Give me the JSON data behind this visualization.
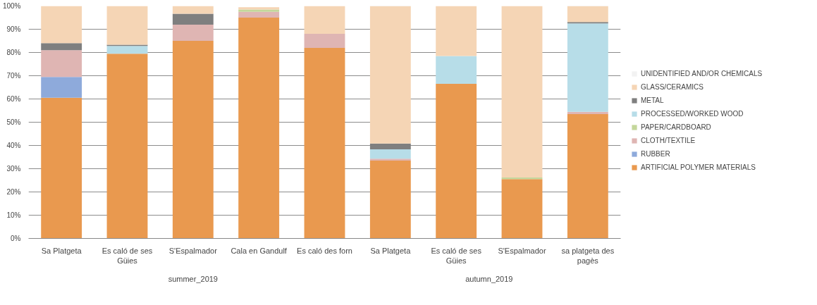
{
  "chart_data": {
    "type": "bar",
    "stacked": true,
    "categories": [
      "Sa Platgeta",
      "Es caló de ses Güies",
      "S'Espalmador",
      "Cala en Gandulf",
      "Es caló des forn",
      "Sa Platgeta",
      "Es caló de ses Güies",
      "S'Espalmador",
      "sa platgeta des pagès"
    ],
    "annotations": [
      "summer_2019",
      "autumn_2019"
    ],
    "series": [
      {
        "name": "ARTIFICIAL POLYMER MATERIALS",
        "color": "#e9994f",
        "values": [
          60.5,
          79.5,
          85,
          95,
          82,
          33.5,
          66.5,
          25.5,
          53.5
        ]
      },
      {
        "name": "RUBBER",
        "color": "#8eaadb",
        "values": [
          9,
          0,
          0,
          0,
          0,
          0,
          0,
          0,
          0
        ]
      },
      {
        "name": "CLOTH/TEXTILE",
        "color": "#dfb5b3",
        "values": [
          11.5,
          0,
          7,
          2.5,
          6,
          0.8,
          0,
          0,
          1
        ]
      },
      {
        "name": "PAPER/CARDBOARD",
        "color": "#c4d79b",
        "values": [
          0,
          0,
          0,
          1,
          0,
          0,
          0,
          0.7,
          0
        ]
      },
      {
        "name": "PROCESSED/WORKED WOOD",
        "color": "#b7dde8",
        "values": [
          0,
          3.3,
          0,
          0,
          0,
          4,
          12,
          0,
          38
        ]
      },
      {
        "name": "METAL",
        "color": "#7f7f7f",
        "values": [
          3,
          0.5,
          4.7,
          0,
          0,
          2.5,
          0,
          0,
          0.6
        ]
      },
      {
        "name": "GLASS/CERAMICS",
        "color": "#f5d5b5",
        "values": [
          16,
          16.7,
          3.3,
          1,
          12,
          59.5,
          21.5,
          73.8,
          7.2
        ]
      },
      {
        "name": "UNIDENTIFIED AND/OR CHEMICALS",
        "color": "#f2f2f2",
        "values": [
          0,
          0,
          0,
          null,
          0,
          0,
          0,
          0,
          0
        ]
      }
    ],
    "ylim": [
      0,
      100
    ],
    "yticks": [
      {
        "value": 0,
        "label": "0%"
      },
      {
        "value": 10,
        "label": "10%"
      },
      {
        "value": 20,
        "label": "20%"
      },
      {
        "value": 30,
        "label": "30%"
      },
      {
        "value": 40,
        "label": "40%"
      },
      {
        "value": 50,
        "label": "50%"
      },
      {
        "value": 60,
        "label": "60%"
      },
      {
        "value": 70,
        "label": "70%"
      },
      {
        "value": 80,
        "label": "80%"
      },
      {
        "value": 90,
        "label": "90%"
      },
      {
        "value": 100,
        "label": "100%"
      }
    ],
    "grid": "y",
    "legend": "right"
  }
}
